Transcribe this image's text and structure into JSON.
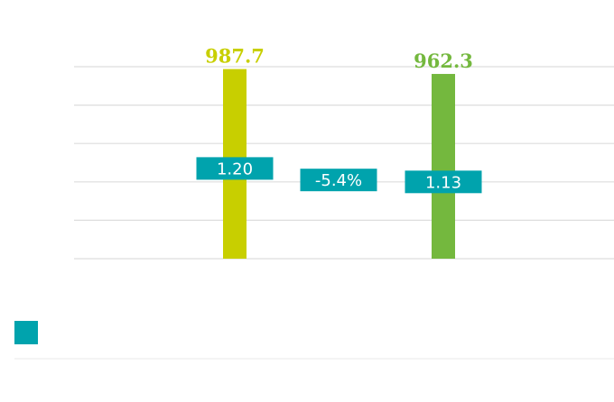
{
  "chart_data": {
    "type": "bar",
    "categories": [
      "",
      ""
    ],
    "ylim": [
      0,
      1000
    ],
    "grid": true,
    "legend": "bottom-left",
    "series": [
      {
        "values": [
          987.7,
          962.3
        ],
        "value_labels": [
          "987.7",
          "962.3"
        ],
        "colors": [
          "#c8cf00",
          "#74b83e"
        ]
      }
    ],
    "ratios": {
      "values": [
        1.2,
        1.13
      ],
      "labels": [
        "1.20",
        "1.13"
      ],
      "level_in_y_units": [
        470,
        400
      ],
      "color": "#00a3ad"
    },
    "change": {
      "value": -5.4,
      "label": "-5.4%",
      "level_in_y_units": [
        410
      ],
      "color": "#00a3ad"
    },
    "colors": {
      "grid": "#dedede",
      "legend_swatch": "#00a3ad",
      "separator": "#eaeaea"
    }
  }
}
